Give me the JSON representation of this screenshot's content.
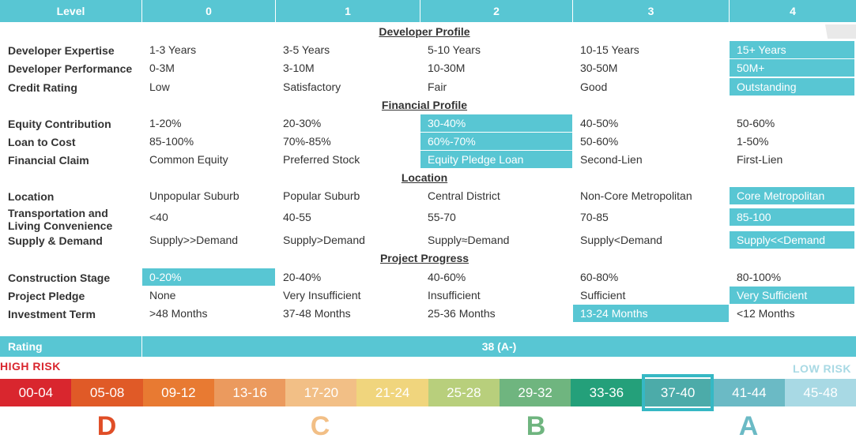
{
  "header": {
    "level_label": "Level",
    "levels": [
      "0",
      "1",
      "2",
      "3",
      "4"
    ]
  },
  "sections": [
    {
      "title": "Developer Profile",
      "rows": [
        {
          "label": "Developer Expertise",
          "values": [
            "1-3 Years",
            "3-5 Years",
            "5-10 Years",
            "10-15 Years",
            "15+ Years"
          ],
          "selected": 4
        },
        {
          "label": "Developer Performance",
          "values": [
            "0-3M",
            "3-10M",
            "10-30M",
            "30-50M",
            "50M+"
          ],
          "selected": 4
        },
        {
          "label": "Credit Rating",
          "values": [
            "Low",
            "Satisfactory",
            "Fair",
            "Good",
            "Outstanding"
          ],
          "selected": 4
        }
      ]
    },
    {
      "title": "Financial Profile",
      "rows": [
        {
          "label": "Equity Contribution",
          "values": [
            "1-20%",
            "20-30%",
            "30-40%",
            "40-50%",
            "50-60%"
          ],
          "selected": 2
        },
        {
          "label": "Loan to Cost",
          "values": [
            "85-100%",
            "70%-85%",
            "60%-70%",
            "50-60%",
            "1-50%"
          ],
          "selected": 2
        },
        {
          "label": "Financial Claim",
          "values": [
            "Common Equity",
            "Preferred Stock",
            "Equity Pledge Loan",
            "Second-Lien",
            "First-Lien"
          ],
          "selected": 2
        }
      ]
    },
    {
      "title": "Location",
      "rows": [
        {
          "label": "Location",
          "values": [
            "Unpopular Suburb",
            "Popular Suburb",
            "Central District",
            "Non-Core Metropolitan",
            "Core Metropolitan"
          ],
          "selected": 4
        },
        {
          "label": "Transportation and Living Convenience",
          "values": [
            "<40",
            "40-55",
            "55-70",
            "70-85",
            "85-100"
          ],
          "selected": 4
        },
        {
          "label": "Supply & Demand",
          "values": [
            "Supply>>Demand",
            "Supply>Demand",
            "Supply≈Demand",
            "Supply<Demand",
            "Supply<<Demand"
          ],
          "selected": 4
        }
      ]
    },
    {
      "title": "Project Progress",
      "rows": [
        {
          "label": "Construction Stage",
          "values": [
            "0-20%",
            "20-40%",
            "40-60%",
            "60-80%",
            "80-100%"
          ],
          "selected": 0
        },
        {
          "label": "Project Pledge",
          "values": [
            "None",
            "Very Insufficient",
            "Insufficient",
            "Sufficient",
            "Very Sufficient"
          ],
          "selected": 4
        },
        {
          "label": "Investment Term",
          "values": [
            ">48 Months",
            "37-48 Months",
            "25-36 Months",
            "13-24 Months",
            "<12 Months"
          ],
          "selected": 3
        }
      ]
    }
  ],
  "rating": {
    "label": "Rating",
    "value": "38 (A-)"
  },
  "risk": {
    "high": "HIGH RISK",
    "low": "LOW RISK"
  },
  "scale": [
    {
      "range": "00-04",
      "color": "#d9262e"
    },
    {
      "range": "05-08",
      "color": "#e05a27"
    },
    {
      "range": "09-12",
      "color": "#e87a32"
    },
    {
      "range": "13-16",
      "color": "#eb9a5e"
    },
    {
      "range": "17-20",
      "color": "#f2bf86"
    },
    {
      "range": "21-24",
      "color": "#f0d57d"
    },
    {
      "range": "25-28",
      "color": "#b8cf7c"
    },
    {
      "range": "29-32",
      "color": "#6fb57f"
    },
    {
      "range": "33-36",
      "color": "#24a07a"
    },
    {
      "range": "37-40",
      "color": "#4caba9"
    },
    {
      "range": "41-44",
      "color": "#6bbac5"
    },
    {
      "range": "45-48",
      "color": "#a8d9e4"
    }
  ],
  "scale_selected": 9,
  "grades": [
    {
      "letter": "D",
      "color": "#e04e27"
    },
    {
      "letter": "C",
      "color": "#f2bf86"
    },
    {
      "letter": "B",
      "color": "#6fb57f"
    },
    {
      "letter": "A",
      "color": "#6bbac5"
    }
  ],
  "colors": {
    "accent": "#58c6d3",
    "high_risk": "#d9262e",
    "low_risk": "#a8d9e4",
    "selected_frame": "#36b8c4"
  }
}
